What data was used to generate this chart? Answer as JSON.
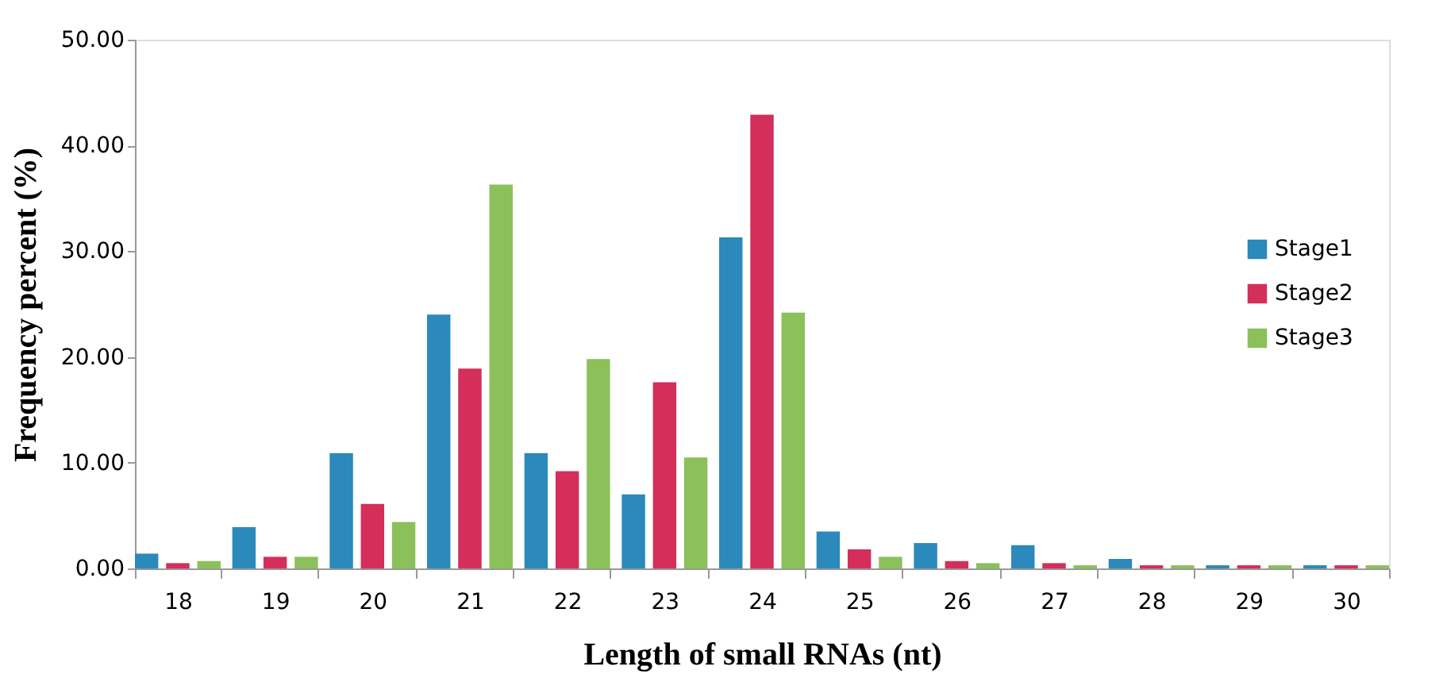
{
  "chart_data": {
    "type": "bar",
    "xlabel": "Length of small RNAs (nt)",
    "ylabel": "Frequency  percent (%)",
    "categories": [
      "18",
      "19",
      "20",
      "21",
      "22",
      "23",
      "24",
      "25",
      "26",
      "27",
      "28",
      "29",
      "30"
    ],
    "series": [
      {
        "name": "Stage1",
        "color": "#2b89bb",
        "values": [
          1.4,
          3.9,
          10.9,
          24.0,
          10.9,
          7.0,
          31.3,
          3.5,
          2.4,
          2.2,
          0.9,
          0.3,
          0.3
        ]
      },
      {
        "name": "Stage2",
        "color": "#d42e5a",
        "values": [
          0.5,
          1.1,
          6.1,
          18.9,
          9.2,
          17.6,
          42.9,
          1.8,
          0.7,
          0.5,
          0.3,
          0.3,
          0.3
        ]
      },
      {
        "name": "Stage3",
        "color": "#8cc05a",
        "values": [
          0.7,
          1.1,
          4.4,
          36.3,
          19.8,
          10.5,
          24.2,
          1.1,
          0.5,
          0.3,
          0.3,
          0.3,
          0.3
        ]
      }
    ],
    "ylim": [
      0,
      50
    ],
    "yticks": [
      {
        "value": 0,
        "label": "0.00"
      },
      {
        "value": 10,
        "label": "10.00"
      },
      {
        "value": 20,
        "label": "20.00"
      },
      {
        "value": 30,
        "label": "30.00"
      },
      {
        "value": 40,
        "label": "40.00"
      },
      {
        "value": 50,
        "label": "50.00"
      }
    ],
    "grid": false,
    "legend": "right"
  }
}
